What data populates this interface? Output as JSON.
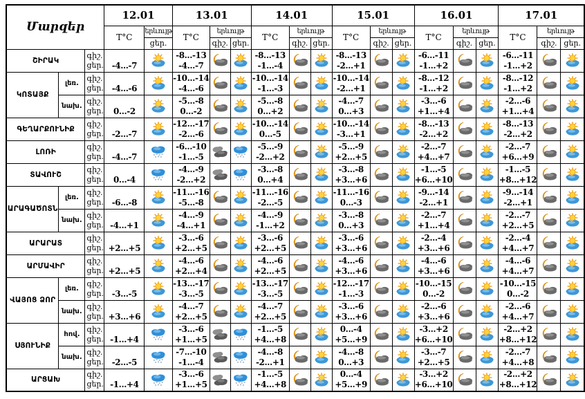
{
  "table": {
    "corner_title": "Մարզեր",
    "temp_header": "T°C",
    "phenomenon_header": "երևույթ",
    "night_label": "գիշ.",
    "day_label": "ցեր.",
    "dates": [
      "12.01",
      "13.01",
      "14.01",
      "15.01",
      "16.01",
      "17.01"
    ],
    "regions": [
      {
        "name": "ՇԻՐԱԿ",
        "rows": [
          {
            "sub": null,
            "days": [
              {
                "day_temp": "-4...-7",
                "day_icon": "sun-cloud"
              },
              {
                "night_temp": "-8...-13",
                "day_temp": "-4...-7",
                "night_icon": "moon-cloud",
                "day_icon": "sun-cloud"
              },
              {
                "night_temp": "-8...-13",
                "day_temp": "-1...-4",
                "night_icon": "moon-cloud",
                "day_icon": "sun-cloud"
              },
              {
                "night_temp": "-8...-13",
                "day_temp": "-2...+1",
                "night_icon": "moon-cloud",
                "day_icon": "sun-cloud"
              },
              {
                "night_temp": "-6...-11",
                "day_temp": "-1...+2",
                "night_icon": "moon-cloud",
                "day_icon": "sun-cloud"
              },
              {
                "night_temp": "-6...-11",
                "day_temp": "-1...+2",
                "night_icon": "moon-cloud",
                "day_icon": "sun-cloud"
              }
            ]
          }
        ]
      },
      {
        "name": "ԿՈՏԱՅՔ",
        "rows": [
          {
            "sub": "լեռ.",
            "days": [
              {
                "day_temp": "-4...-6",
                "day_icon": "sun-cloud"
              },
              {
                "night_temp": "-10...-14",
                "day_temp": "-4...-6",
                "night_icon": "moon-cloud",
                "day_icon": "sun-cloud"
              },
              {
                "night_temp": "-10...-14",
                "day_temp": "-1...-3",
                "night_icon": "moon-cloud",
                "day_icon": "sun-cloud"
              },
              {
                "night_temp": "-10...-14",
                "day_temp": "-2...+1",
                "night_icon": "moon-cloud",
                "day_icon": "sun-cloud"
              },
              {
                "night_temp": "-8...-12",
                "day_temp": "-1...+2",
                "night_icon": "moon-cloud",
                "day_icon": "sun-cloud"
              },
              {
                "night_temp": "-8...-12",
                "day_temp": "-1...+2",
                "night_icon": "moon-cloud",
                "day_icon": "sun-cloud"
              }
            ]
          },
          {
            "sub": "նախ.",
            "days": [
              {
                "day_temp": "0...-2",
                "day_icon": "sun-cloud"
              },
              {
                "night_temp": "-5...-8",
                "day_temp": "0...-2",
                "night_icon": "moon-cloud",
                "day_icon": "sun-cloud"
              },
              {
                "night_temp": "-5...-8",
                "day_temp": "0...+2",
                "night_icon": "moon-cloud",
                "day_icon": "sun-cloud"
              },
              {
                "night_temp": "-4...-7",
                "day_temp": "0...+3",
                "night_icon": "moon-cloud",
                "day_icon": "sun-cloud"
              },
              {
                "night_temp": "-3...-6",
                "day_temp": "+1...+4",
                "night_icon": "moon-cloud",
                "day_icon": "sun-cloud"
              },
              {
                "night_temp": "-2...-6",
                "day_temp": "+1...+4",
                "night_icon": "moon-cloud",
                "day_icon": "sun-cloud"
              }
            ]
          }
        ]
      },
      {
        "name": "ԳԵՂԱՐՔՈՒՆԻՔ",
        "rows": [
          {
            "sub": null,
            "days": [
              {
                "day_temp": "-2...-7",
                "day_icon": "sun-cloud"
              },
              {
                "night_temp": "-12...-17",
                "day_temp": "-2...-6",
                "night_icon": "moon-cloud",
                "day_icon": "sun-cloud"
              },
              {
                "night_temp": "-10...-14",
                "day_temp": "0...-5",
                "night_icon": "moon-cloud",
                "day_icon": "sun-cloud"
              },
              {
                "night_temp": "-10...-14",
                "day_temp": "-3...+1",
                "night_icon": "moon-cloud",
                "day_icon": "sun-cloud"
              },
              {
                "night_temp": "-8...-13",
                "day_temp": "-2...+2",
                "night_icon": "moon-cloud",
                "day_icon": "sun-cloud"
              },
              {
                "night_temp": "-8...-13",
                "day_temp": "-2...+2",
                "night_icon": "moon-cloud",
                "day_icon": "sun-cloud"
              }
            ]
          }
        ]
      },
      {
        "name": "ԼՈՌԻ",
        "rows": [
          {
            "sub": null,
            "days": [
              {
                "day_temp": "-4...-7",
                "day_icon": "snow-cloud"
              },
              {
                "night_temp": "-6...-10",
                "day_temp": "-1...-5",
                "night_icon": "dark-clouds",
                "day_icon": "snow-cloud"
              },
              {
                "night_temp": "-5...-9",
                "day_temp": "-2...+2",
                "night_icon": "moon-cloud",
                "day_icon": "sun-cloud"
              },
              {
                "night_temp": "-5...-9",
                "day_temp": "+2...+5",
                "night_icon": "moon-cloud",
                "day_icon": "sun-cloud"
              },
              {
                "night_temp": "-2...-7",
                "day_temp": "+4...+7",
                "night_icon": "moon-cloud",
                "day_icon": "sun-cloud"
              },
              {
                "night_temp": "-2...-7",
                "day_temp": "+6...+9",
                "night_icon": "moon-cloud",
                "day_icon": "sun-cloud"
              }
            ]
          }
        ]
      },
      {
        "name": "ՏԱՎՈՒՇ",
        "rows": [
          {
            "sub": null,
            "days": [
              {
                "day_temp": "0...-4",
                "day_icon": "snow-cloud"
              },
              {
                "night_temp": "-4...-9",
                "day_temp": "-2...+2",
                "night_icon": "dark-clouds",
                "day_icon": "snow-cloud"
              },
              {
                "night_temp": "-3...-8",
                "day_temp": "0...+4",
                "night_icon": "moon-cloud",
                "day_icon": "sun-cloud"
              },
              {
                "night_temp": "-3...-8",
                "day_temp": "+3...+6",
                "night_icon": "moon-cloud",
                "day_icon": "sun-cloud"
              },
              {
                "night_temp": "-1...-5",
                "day_temp": "+6...+10",
                "night_icon": "moon-cloud",
                "day_icon": "sun-cloud"
              },
              {
                "night_temp": "-1...-5",
                "day_temp": "+8...+12",
                "night_icon": "moon-cloud",
                "day_icon": "sun-cloud"
              }
            ]
          }
        ]
      },
      {
        "name": "ԱՐԱԳԱԾՈՏՆ",
        "rows": [
          {
            "sub": "լեռ.",
            "days": [
              {
                "day_temp": "-6...-8",
                "day_icon": "sun-cloud"
              },
              {
                "night_temp": "-11...-16",
                "day_temp": "-5...-8",
                "night_icon": "moon-cloud",
                "day_icon": "sun-cloud"
              },
              {
                "night_temp": "-11...-16",
                "day_temp": "-2...-5",
                "night_icon": "moon-cloud",
                "day_icon": "sun-cloud"
              },
              {
                "night_temp": "-11...-16",
                "day_temp": "0...-3",
                "night_icon": "moon-cloud",
                "day_icon": "sun-cloud"
              },
              {
                "night_temp": "-9...-14",
                "day_temp": "-2...+1",
                "night_icon": "moon-cloud",
                "day_icon": "sun-cloud"
              },
              {
                "night_temp": "-9...-14",
                "day_temp": "-2...+1",
                "night_icon": "moon-cloud",
                "day_icon": "sun-cloud"
              }
            ]
          },
          {
            "sub": "նախ.",
            "days": [
              {
                "day_temp": "-4...+1",
                "day_icon": "sun-cloud"
              },
              {
                "night_temp": "-4...-9",
                "day_temp": "-4...+1",
                "night_icon": "moon-cloud",
                "day_icon": "sun-cloud"
              },
              {
                "night_temp": "-4...-9",
                "day_temp": "-1...+2",
                "night_icon": "moon-cloud",
                "day_icon": "sun-cloud"
              },
              {
                "night_temp": "-3...-8",
                "day_temp": "0...+3",
                "night_icon": "moon-cloud",
                "day_icon": "sun-cloud"
              },
              {
                "night_temp": "-2...-7",
                "day_temp": "+1...+4",
                "night_icon": "moon-cloud",
                "day_icon": "sun-cloud"
              },
              {
                "night_temp": "-2...-7",
                "day_temp": "+2...+5",
                "night_icon": "moon-cloud",
                "day_icon": "sun-cloud"
              }
            ]
          }
        ]
      },
      {
        "name": "ԱՐԱՐԱՏ",
        "rows": [
          {
            "sub": null,
            "days": [
              {
                "day_temp": "+2...+5",
                "day_icon": "sun-cloud"
              },
              {
                "night_temp": "-3...-6",
                "day_temp": "+2...+5",
                "night_icon": "moon-cloud",
                "day_icon": "sun-cloud"
              },
              {
                "night_temp": "-3...-6",
                "day_temp": "+2...+5",
                "night_icon": "moon-cloud",
                "day_icon": "sun-cloud"
              },
              {
                "night_temp": "-3...-6",
                "day_temp": "+3...+6",
                "night_icon": "moon-cloud",
                "day_icon": "sun-cloud"
              },
              {
                "night_temp": "-2...-4",
                "day_temp": "+3...+6",
                "night_icon": "moon-cloud",
                "day_icon": "sun-cloud"
              },
              {
                "night_temp": "-2...-4",
                "day_temp": "+4...+7",
                "night_icon": "moon-cloud",
                "day_icon": "sun-cloud"
              }
            ]
          }
        ]
      },
      {
        "name": "ԱՐՄԱՎԻՐ",
        "rows": [
          {
            "sub": null,
            "days": [
              {
                "day_temp": "+2...+5",
                "day_icon": "sun-cloud"
              },
              {
                "night_temp": "-4...-6",
                "day_temp": "+2...+4",
                "night_icon": "moon-cloud",
                "day_icon": "sun-cloud"
              },
              {
                "night_temp": "-4...-6",
                "day_temp": "+2...+5",
                "night_icon": "moon-cloud",
                "day_icon": "sun-cloud"
              },
              {
                "night_temp": "-4...-6",
                "day_temp": "+3...+6",
                "night_icon": "moon-cloud",
                "day_icon": "sun-cloud"
              },
              {
                "night_temp": "-4...-6",
                "day_temp": "+3...+6",
                "night_icon": "moon-cloud",
                "day_icon": "sun-cloud"
              },
              {
                "night_temp": "-4...-6",
                "day_temp": "+4...+7",
                "night_icon": "moon-cloud",
                "day_icon": "sun-cloud"
              }
            ]
          }
        ]
      },
      {
        "name": "ՎԱՅՈՑ ՁՈՐ",
        "rows": [
          {
            "sub": "լեռ.",
            "days": [
              {
                "day_temp": "-3...-5",
                "day_icon": "sun-cloud"
              },
              {
                "night_temp": "-13...-17",
                "day_temp": "-3...-5",
                "night_icon": "moon-cloud",
                "day_icon": "sun-cloud"
              },
              {
                "night_temp": "-13...-17",
                "day_temp": "-3...-5",
                "night_icon": "moon-cloud",
                "day_icon": "sun-cloud"
              },
              {
                "night_temp": "-12...-17",
                "day_temp": "-1...-3",
                "night_icon": "moon-cloud",
                "day_icon": "sun-cloud"
              },
              {
                "night_temp": "-10...-15",
                "day_temp": "0...-2",
                "night_icon": "moon-cloud",
                "day_icon": "sun-cloud"
              },
              {
                "night_temp": "-10...-15",
                "day_temp": "0...-2",
                "night_icon": "moon-cloud",
                "day_icon": "sun-cloud"
              }
            ]
          },
          {
            "sub": "նախ.",
            "days": [
              {
                "day_temp": "+3...+6",
                "day_icon": "sun-cloud"
              },
              {
                "night_temp": "-4...-7",
                "day_temp": "+2...+5",
                "night_icon": "moon-cloud",
                "day_icon": "sun-cloud"
              },
              {
                "night_temp": "-4...-7",
                "day_temp": "+2...+5",
                "night_icon": "moon-cloud",
                "day_icon": "sun-cloud"
              },
              {
                "night_temp": "-3...-6",
                "day_temp": "+3...+6",
                "night_icon": "moon-cloud",
                "day_icon": "sun-cloud"
              },
              {
                "night_temp": "-2...-6",
                "day_temp": "+3...+6",
                "night_icon": "moon-cloud",
                "day_icon": "sun-cloud"
              },
              {
                "night_temp": "-2...-6",
                "day_temp": "+4...+7",
                "night_icon": "moon-cloud",
                "day_icon": "sun-cloud"
              }
            ]
          }
        ]
      },
      {
        "name": "ՍՅՈՒՆԻՔ",
        "rows": [
          {
            "sub": "հով.",
            "days": [
              {
                "day_temp": "-1...+4",
                "day_icon": "snow-cloud"
              },
              {
                "night_temp": "-3...-6",
                "day_temp": "+1...+5",
                "night_icon": "dark-clouds",
                "day_icon": "snow-cloud"
              },
              {
                "night_temp": "-1...-5",
                "day_temp": "+4...+8",
                "night_icon": "moon-cloud",
                "day_icon": "sun-cloud"
              },
              {
                "night_temp": "0...-4",
                "day_temp": "+5...+9",
                "night_icon": "moon-cloud",
                "day_icon": "sun-cloud"
              },
              {
                "night_temp": "-3...+2",
                "day_temp": "+6...+10",
                "night_icon": "moon-cloud",
                "day_icon": "sun-cloud"
              },
              {
                "night_temp": "-2...+2",
                "day_temp": "+8...+12",
                "night_icon": "moon-cloud",
                "day_icon": "sun-cloud"
              }
            ]
          },
          {
            "sub": "նախ.",
            "days": [
              {
                "day_temp": "-2...-5",
                "day_icon": "snow-cloud"
              },
              {
                "night_temp": "-7...-10",
                "day_temp": "-1...-4",
                "night_icon": "dark-clouds",
                "day_icon": "snow-cloud"
              },
              {
                "night_temp": "-4...-8",
                "day_temp": "-2...+1",
                "night_icon": "moon-cloud",
                "day_icon": "sun-cloud"
              },
              {
                "night_temp": "-4...-8",
                "day_temp": "0...+3",
                "night_icon": "moon-cloud",
                "day_icon": "sun-cloud"
              },
              {
                "night_temp": "-3...-7",
                "day_temp": "+2...+5",
                "night_icon": "moon-cloud",
                "day_icon": "sun-cloud"
              },
              {
                "night_temp": "-2...-7",
                "day_temp": "+4...+8",
                "night_icon": "moon-cloud",
                "day_icon": "sun-cloud"
              }
            ]
          }
        ]
      },
      {
        "name": "ԱՐՑԱԽ",
        "rows": [
          {
            "sub": null,
            "days": [
              {
                "day_temp": "-1...+4",
                "day_icon": "snow-cloud"
              },
              {
                "night_temp": "-3...-6",
                "day_temp": "+1...+5",
                "night_icon": "dark-clouds",
                "day_icon": "snow-cloud"
              },
              {
                "night_temp": "-1...-5",
                "day_temp": "+4...+8",
                "night_icon": "moon-cloud",
                "day_icon": "sun-cloud"
              },
              {
                "night_temp": "0...-4",
                "day_temp": "+5...+9",
                "night_icon": "moon-cloud",
                "day_icon": "sun-cloud"
              },
              {
                "night_temp": "-3...+2",
                "day_temp": "+6...+10",
                "night_icon": "moon-cloud",
                "day_icon": "sun-cloud"
              },
              {
                "night_temp": "-2...+2",
                "day_temp": "+8...+12",
                "night_icon": "moon-cloud",
                "day_icon": "sun-cloud"
              }
            ]
          }
        ]
      }
    ]
  },
  "icon_legend": {
    "sun-cloud": "sun behind blue cloud (partly sunny day)",
    "moon-cloud": "orange crescent moon behind dark cloud (partly clear night)",
    "dark-clouds": "dark grey clouds (overcast)",
    "snow-cloud": "blue cloud with snowflakes (snow)"
  },
  "colors": {
    "background": "#ffffff",
    "border": "#000000",
    "text": "#000000",
    "sun": "#ffd23e",
    "sun_rays": "#f09d0c",
    "moon": "#f3a31b",
    "day_cloud": "#3f97d6",
    "night_cloud": "#6a6a6a",
    "snow_cloud": "#2f8fd8",
    "snow_dots": "#aebfd0"
  }
}
